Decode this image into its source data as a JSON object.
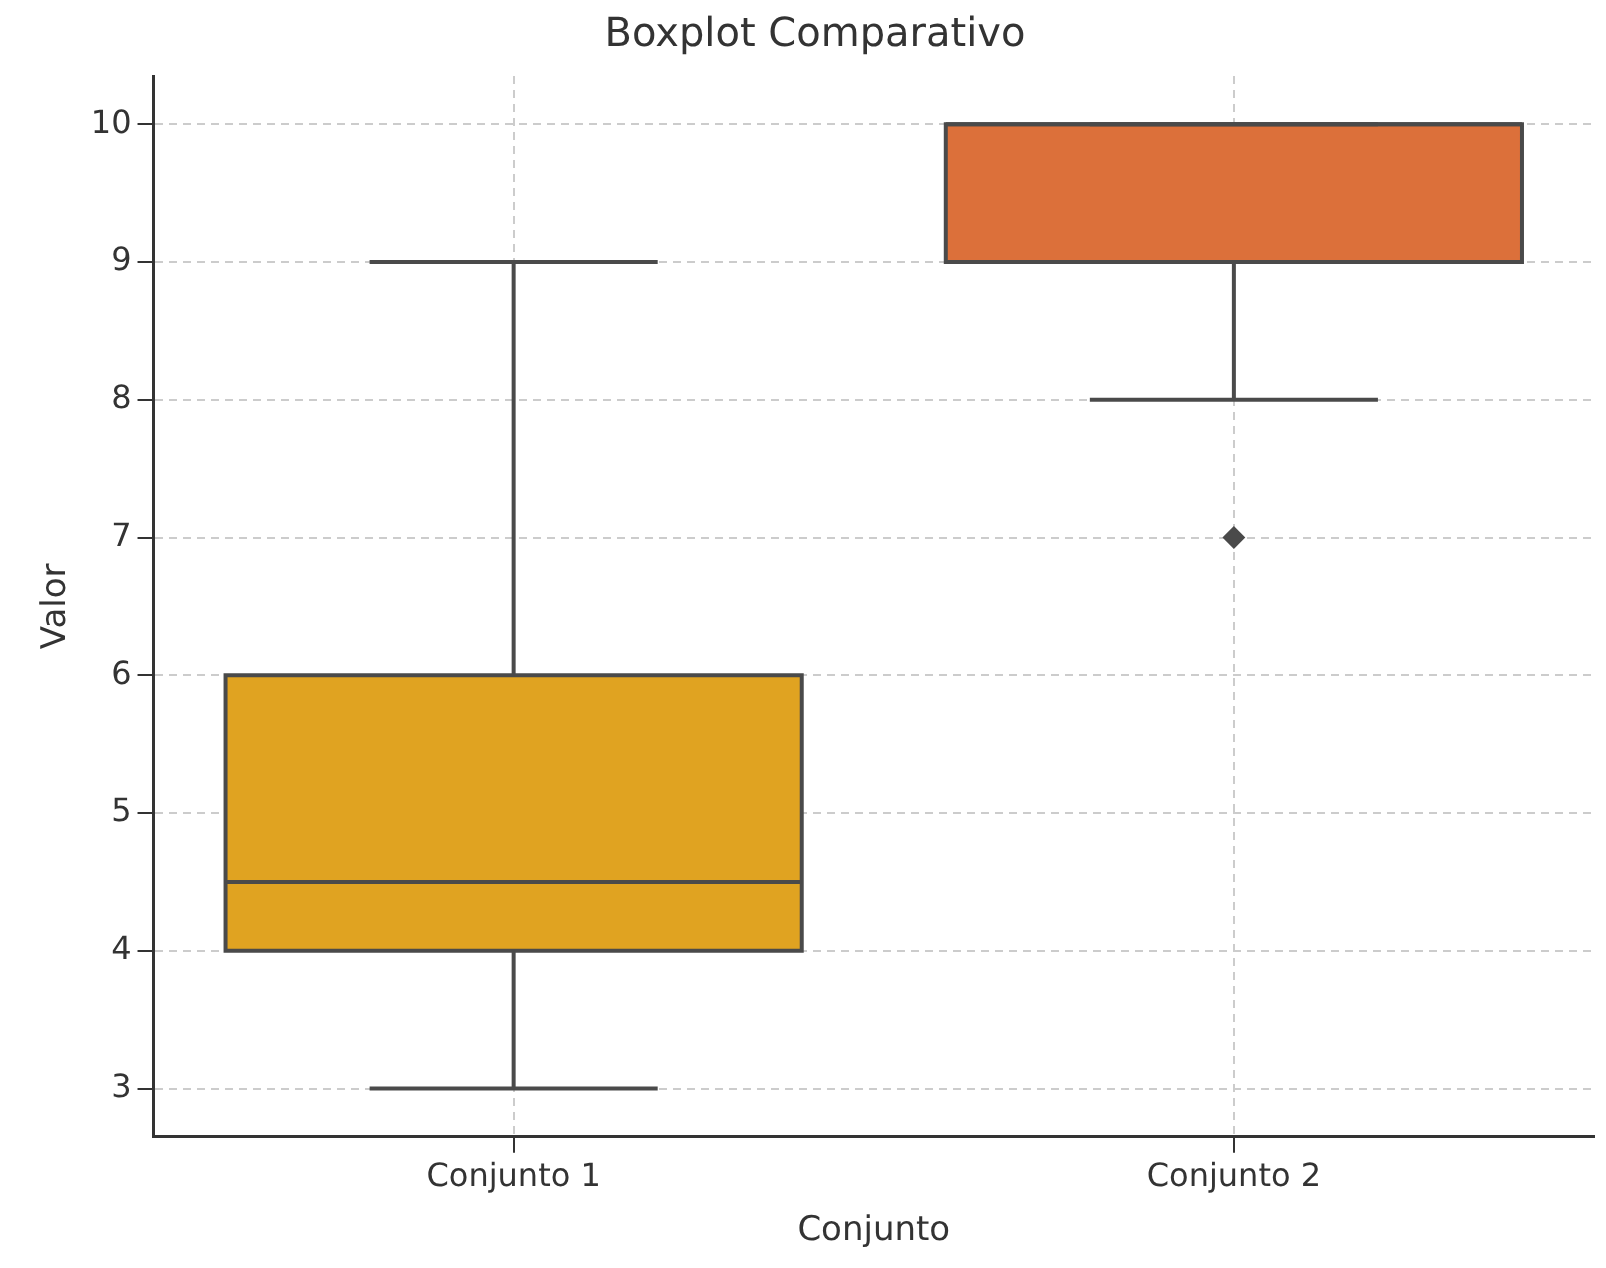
{
  "chart_data": {
    "type": "box",
    "title": "Boxplot Comparativo",
    "xlabel": "Conjunto",
    "ylabel": "Valor",
    "categories": [
      "Conjunto 1",
      "Conjunto 2"
    ],
    "colors": [
      "#e0a321",
      "#dc703a"
    ],
    "boxes": [
      {
        "low": 3,
        "q1": 4,
        "median": 4.5,
        "q3": 6,
        "high": 9
      },
      {
        "low": 8,
        "q1": 9,
        "median": 10,
        "q3": 10,
        "high": 10,
        "outliers": [
          7
        ]
      }
    ],
    "ylim": [
      2.65,
      10.35
    ],
    "yticks": [
      3,
      4,
      5,
      6,
      7,
      8,
      9,
      10
    ],
    "grid": true,
    "marker": "diamond"
  }
}
